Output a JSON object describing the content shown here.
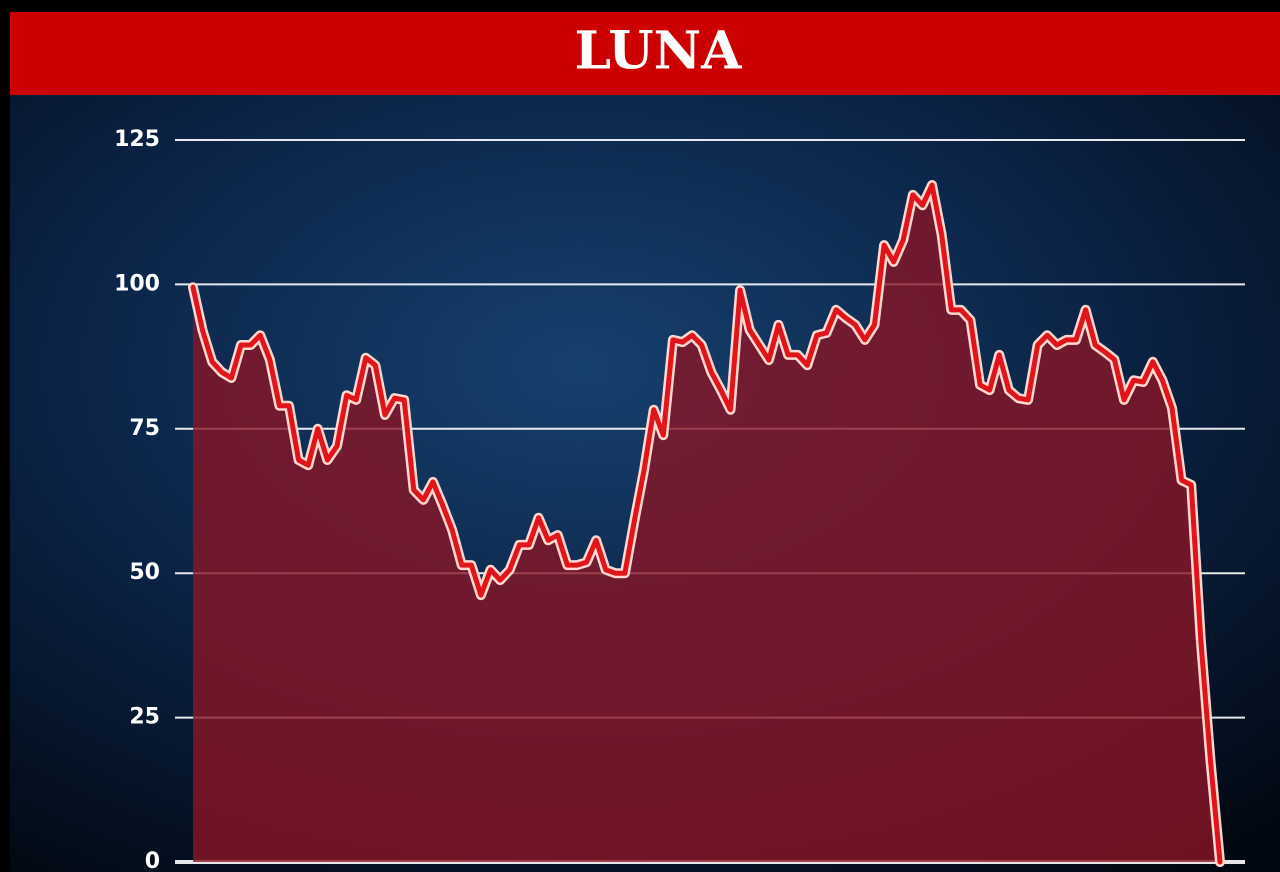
{
  "chart_data": {
    "type": "line",
    "title": "LUNA",
    "values": [
      99.5,
      92,
      86.6,
      84.8,
      83.8,
      89.5,
      89.5,
      91.2,
      87,
      79,
      79,
      69.6,
      68.7,
      75,
      69.6,
      72,
      80.8,
      80,
      87.3,
      86,
      77.4,
      80.3,
      80,
      64.4,
      62.7,
      65.8,
      61.8,
      57.5,
      51.4,
      51.4,
      46.2,
      50.6,
      48.8,
      50.6,
      54.9,
      54.9,
      59.6,
      55.7,
      56.6,
      51.4,
      51.4,
      51.9,
      55.7,
      50.6,
      50,
      50,
      59.2,
      67.9,
      78.3,
      73.9,
      90.4,
      90,
      91.2,
      89.5,
      84.8,
      81.7,
      78.3,
      99,
      92.1,
      89.5,
      86.9,
      93,
      87.8,
      87.8,
      86,
      91.2,
      91.6,
      95.6,
      94.2,
      93,
      90.4,
      93,
      106.8,
      103.9,
      107.7,
      115.5,
      113.7,
      117.2,
      108.6,
      95.6,
      95.6,
      93.8,
      82.6,
      81.7,
      87.8,
      81.7,
      80.3,
      80,
      89.5,
      91.2,
      89.5,
      90.4,
      90.4,
      95.6,
      89.5,
      88.3,
      87,
      80,
      83.4,
      83.1,
      86.6,
      83.4,
      78.6,
      66.1,
      65.3,
      38.4,
      17.7,
      0
    ],
    "color": "#e0141b",
    "ylim": [
      0,
      125
    ],
    "yticks": [
      0,
      25,
      50,
      75,
      100,
      125
    ],
    "grid": true
  }
}
